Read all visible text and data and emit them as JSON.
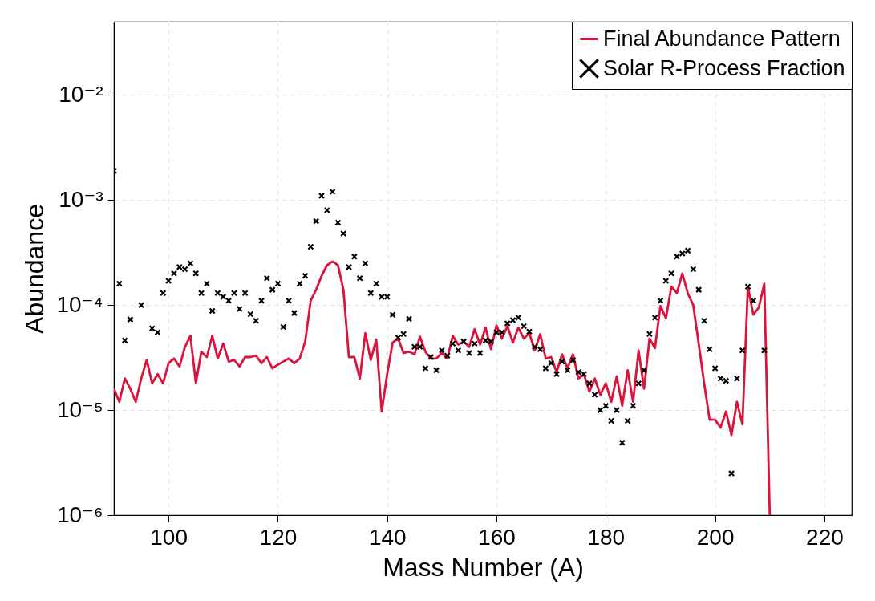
{
  "chart_data": {
    "type": "line",
    "xlabel": "Mass Number (A)",
    "ylabel": "Abundance",
    "log": true,
    "grid": true,
    "legend": "top right",
    "xlim": [
      90,
      225
    ],
    "xticks": [
      100,
      120,
      140,
      160,
      180,
      200,
      220
    ],
    "ylim": [
      1e-06,
      0.05
    ],
    "yticks": [
      {
        "value": 1e-06,
        "label": "10⁻⁶"
      },
      {
        "value": 1e-05,
        "label": "10⁻⁵"
      },
      {
        "value": 0.0001,
        "label": "10⁻⁴"
      },
      {
        "value": 0.001,
        "label": "10⁻³"
      },
      {
        "value": 0.01,
        "label": "10⁻²"
      }
    ],
    "series": [
      {
        "name": "Final Abundance Pattern",
        "type": "line",
        "color": "#dc143c",
        "x": [
          90,
          91,
          92,
          93,
          94,
          95,
          96,
          97,
          98,
          99,
          100,
          101,
          102,
          103,
          104,
          105,
          106,
          107,
          108,
          109,
          110,
          111,
          112,
          113,
          114,
          115,
          116,
          117,
          118,
          119,
          120,
          121,
          122,
          123,
          124,
          125,
          126,
          127,
          128,
          129,
          130,
          131,
          132,
          133,
          134,
          135,
          136,
          137,
          138,
          139,
          140,
          141,
          142,
          143,
          144,
          145,
          146,
          147,
          148,
          149,
          150,
          151,
          152,
          153,
          154,
          155,
          156,
          157,
          158,
          159,
          160,
          161,
          162,
          163,
          164,
          165,
          166,
          167,
          168,
          169,
          170,
          171,
          172,
          173,
          174,
          175,
          176,
          177,
          178,
          179,
          180,
          181,
          182,
          183,
          184,
          185,
          186,
          187,
          188,
          189,
          190,
          191,
          192,
          193,
          194,
          195,
          196,
          197,
          198,
          199,
          200,
          201,
          202,
          203,
          204,
          205,
          206,
          207,
          208,
          209,
          210
        ],
        "values": [
          1.6e-05,
          1.2e-05,
          2e-05,
          1.6e-05,
          1.2e-05,
          2e-05,
          3e-05,
          1.8e-05,
          2.2e-05,
          1.8e-05,
          2.8e-05,
          3.1e-05,
          2.6e-05,
          4e-05,
          5.1e-05,
          1.8e-05,
          3.6e-05,
          3.2e-05,
          5.1e-05,
          3.1e-05,
          4.3e-05,
          2.9e-05,
          3e-05,
          2.6e-05,
          3.2e-05,
          3.2e-05,
          3.3e-05,
          2.8e-05,
          3.2e-05,
          2.5e-05,
          2.7e-05,
          2.9e-05,
          3.1e-05,
          2.8e-05,
          3.1e-05,
          4.5e-05,
          0.00011,
          0.00014,
          0.00019,
          0.00024,
          0.00026,
          0.00024,
          0.00014,
          3.2e-05,
          3.2e-05,
          2e-05,
          5.4e-05,
          3e-05,
          4.7e-05,
          9.7e-06,
          2.2e-05,
          4.4e-05,
          4.8e-05,
          3.5e-05,
          3.6e-05,
          3.4e-05,
          5e-05,
          3.6e-05,
          3.1e-05,
          3.1e-05,
          3.5e-05,
          3.1e-05,
          5.1e-05,
          4.2e-05,
          4.5e-05,
          4e-05,
          5.9e-05,
          4.2e-05,
          6.1e-05,
          3.8e-05,
          6.4e-05,
          4.8e-05,
          6.3e-05,
          4.4e-05,
          6.1e-05,
          4.8e-05,
          5.4e-05,
          3.7e-05,
          5.3e-05,
          3.1e-05,
          3.2e-05,
          2.3e-05,
          3.4e-05,
          2.5e-05,
          3.4e-05,
          2e-05,
          2.2e-05,
          1.5e-05,
          2e-05,
          1.4e-05,
          1.8e-05,
          1.2e-05,
          2.1e-05,
          1.1e-05,
          2.4e-05,
          1.2e-05,
          3.7e-05,
          1.6e-05,
          4.8e-05,
          3.9e-05,
          9.8e-05,
          7.5e-05,
          0.00015,
          0.00013,
          0.0002,
          0.00013,
          0.0001,
          4.3e-05,
          1.8e-05,
          8.1e-06,
          8.1e-06,
          6.8e-06,
          9.7e-06,
          5.8e-06,
          1.2e-05,
          7.3e-06,
          0.00015,
          8.1e-05,
          9.5e-05,
          0.00016,
          1e-06
        ]
      },
      {
        "name": "Solar R-Process Fraction",
        "type": "scatter",
        "color": "#000000",
        "marker": "cross",
        "x": [
          90,
          91,
          92,
          93,
          95,
          97,
          98,
          99,
          100,
          101,
          102,
          103,
          104,
          105,
          106,
          107,
          108,
          109,
          110,
          111,
          112,
          113,
          114,
          115,
          116,
          117,
          118,
          119,
          120,
          121,
          122,
          123,
          124,
          125,
          126,
          127,
          128,
          129,
          130,
          131,
          132,
          133,
          134,
          135,
          136,
          137,
          138,
          139,
          140,
          141,
          142,
          143,
          144,
          145,
          146,
          147,
          148,
          149,
          150,
          151,
          152,
          153,
          154,
          155,
          156,
          157,
          158,
          159,
          160,
          161,
          162,
          163,
          164,
          165,
          166,
          167,
          168,
          169,
          170,
          171,
          172,
          173,
          174,
          175,
          176,
          177,
          178,
          179,
          180,
          181,
          182,
          183,
          184,
          185,
          186,
          187,
          188,
          189,
          190,
          191,
          192,
          193,
          194,
          195,
          196,
          197,
          198,
          199,
          200,
          201,
          202,
          203,
          204,
          205,
          206,
          207,
          209
        ],
        "values": [
          0.0019,
          0.00016,
          4.6e-05,
          7.3e-05,
          0.0001,
          6e-05,
          5.5e-05,
          0.00013,
          0.00017,
          0.0002,
          0.00023,
          0.00022,
          0.00025,
          0.0002,
          0.00013,
          0.00016,
          8.8e-05,
          0.00013,
          0.00012,
          0.00011,
          0.00013,
          9.2e-05,
          0.00013,
          8.2e-05,
          7.1e-05,
          0.00011,
          0.00018,
          0.00014,
          0.00016,
          6.2e-05,
          0.00011,
          8.4e-05,
          0.00016,
          0.00019,
          0.00036,
          0.00063,
          0.0011,
          0.0008,
          0.0012,
          0.00061,
          0.00048,
          0.00023,
          0.00029,
          0.00018,
          0.00025,
          0.00013,
          0.00016,
          0.00012,
          0.00012,
          8.1e-05,
          4.9e-05,
          5.3e-05,
          7.4e-05,
          4e-05,
          4e-05,
          2.5e-05,
          3.2e-05,
          2.4e-05,
          3.7e-05,
          3.3e-05,
          4.3e-05,
          3.7e-05,
          4.5e-05,
          3.5e-05,
          4.3e-05,
          3.5e-05,
          4.6e-05,
          4.5e-05,
          5.5e-05,
          5.5e-05,
          6.7e-05,
          7.2e-05,
          7.6e-05,
          6.3e-05,
          5.6e-05,
          4e-05,
          3.8e-05,
          2.5e-05,
          2.8e-05,
          2.2e-05,
          2.9e-05,
          2.4e-05,
          3e-05,
          2.3e-05,
          2.2e-05,
          1.8e-05,
          1.4e-05,
          1e-05,
          1.1e-05,
          7.9e-06,
          1e-05,
          4.9e-06,
          7.9e-06,
          1.1e-05,
          1.8e-05,
          2.4e-05,
          5.3e-05,
          7.6e-05,
          0.00011,
          0.00017,
          0.0002,
          0.00029,
          0.00031,
          0.00033,
          0.00022,
          0.00014,
          7.1e-05,
          3.8e-05,
          2.5e-05,
          2e-05,
          1.9e-05,
          2.5e-06,
          2e-05,
          3.7e-05,
          0.00015,
          0.00011,
          3.7e-05
        ]
      }
    ]
  }
}
